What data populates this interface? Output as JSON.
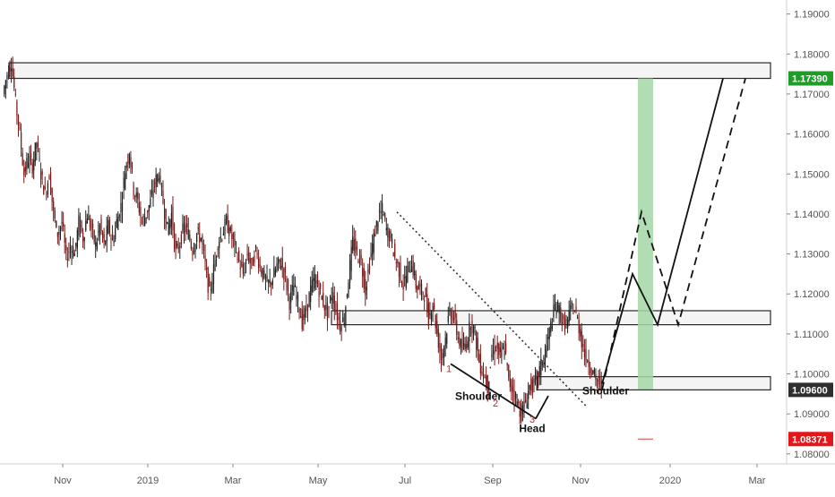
{
  "chart_data": {
    "type": "candlestick",
    "instrument_note": "",
    "y_axis": {
      "ticks": [
        "1.19000",
        "1.18000",
        "1.17000",
        "1.16000",
        "1.15000",
        "1.14000",
        "1.13000",
        "1.12000",
        "1.11000",
        "1.10000",
        "1.09000",
        "1.08000"
      ],
      "range": [
        1.0775,
        1.1935
      ],
      "position": "right"
    },
    "x_axis": {
      "ticks": [
        "Nov",
        "2019",
        "Mar",
        "May",
        "Jul",
        "Sep",
        "Nov",
        "2020",
        "Mar"
      ]
    },
    "price_labels": [
      {
        "text": "1.17390",
        "value": 1.1739,
        "color": "#1e9c27"
      },
      {
        "text": "1.09600",
        "value": 1.096,
        "color": "#2e2e2e"
      },
      {
        "text": "1.08371",
        "value": 1.08371,
        "color": "#e4161a"
      }
    ],
    "zones": [
      {
        "name": "resistance",
        "from": 1.1739,
        "to": 1.1778
      },
      {
        "name": "middle",
        "from": 1.1123,
        "to": 1.1158
      },
      {
        "name": "support",
        "from": 1.096,
        "to": 1.0993
      }
    ],
    "target_box": {
      "from": 1.096,
      "to": 1.1739,
      "color": "#a5d6a7"
    },
    "stop_box": {
      "from": 1.08371,
      "to": 1.096,
      "color": "#f8bbb9"
    },
    "pattern_labels": [
      "Shoulder",
      "Head",
      "Shoulder"
    ],
    "pivot_labels": [
      "1",
      "2",
      "3"
    ],
    "candle_series": [
      {
        "name": "",
        "color_up": "#1f1f1f",
        "color_down": "#7a1818"
      }
    ],
    "price_path": [
      1.17,
      1.175,
      1.178,
      1.168,
      1.16,
      1.15,
      1.154,
      1.152,
      1.158,
      1.15,
      1.145,
      1.15,
      1.14,
      1.135,
      1.138,
      1.129,
      1.132,
      1.13,
      1.138,
      1.134,
      1.14,
      1.136,
      1.132,
      1.137,
      1.132,
      1.137,
      1.133,
      1.138,
      1.142,
      1.151,
      1.156,
      1.146,
      1.143,
      1.138,
      1.14,
      1.143,
      1.148,
      1.15,
      1.143,
      1.136,
      1.14,
      1.13,
      1.133,
      1.137,
      1.135,
      1.131,
      1.135,
      1.134,
      1.127,
      1.12,
      1.126,
      1.133,
      1.135,
      1.138,
      1.135,
      1.132,
      1.128,
      1.125,
      1.13,
      1.127,
      1.131,
      1.127,
      1.124,
      1.122,
      1.124,
      1.127,
      1.128,
      1.124,
      1.118,
      1.122,
      1.118,
      1.113,
      1.116,
      1.121,
      1.124,
      1.121,
      1.118,
      1.115,
      1.12,
      1.116,
      1.112,
      1.114,
      1.124,
      1.133,
      1.13,
      1.128,
      1.121,
      1.128,
      1.134,
      1.139,
      1.141,
      1.136,
      1.134,
      1.129,
      1.126,
      1.122,
      1.126,
      1.128,
      1.122,
      1.121,
      1.12,
      1.114,
      1.118,
      1.11,
      1.104,
      1.109,
      1.116,
      1.114,
      1.109,
      1.106,
      1.108,
      1.113,
      1.11,
      1.103,
      1.1,
      1.097,
      1.105,
      1.107,
      1.104,
      1.107,
      1.098,
      1.096,
      1.093,
      1.09,
      1.093,
      1.097,
      1.097,
      1.1,
      1.103,
      1.107,
      1.112,
      1.117,
      1.116,
      1.112,
      1.113,
      1.117,
      1.115,
      1.11,
      1.105,
      1.103,
      1.1,
      1.098,
      1.097
    ]
  }
}
